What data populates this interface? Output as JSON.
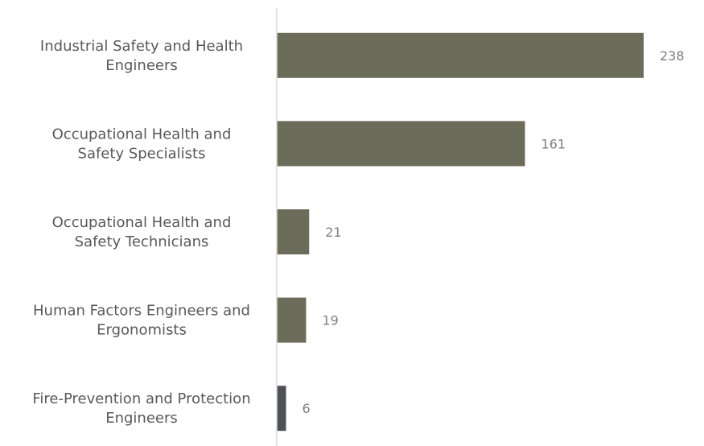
{
  "chart_data": {
    "type": "bar",
    "orientation": "horizontal",
    "categories": [
      "Industrial Safety and Health Engineers",
      "Occupational Health and Safety Specialists",
      "Occupational Health and Safety Technicians",
      "Human Factors Engineers and Ergonomists",
      "Fire-Prevention and Protection Engineers"
    ],
    "category_lines": [
      [
        "Industrial Safety and Health",
        "Engineers"
      ],
      [
        "Occupational Health and",
        "Safety Specialists"
      ],
      [
        "Occupational Health and",
        "Safety Technicians"
      ],
      [
        "Human Factors Engineers and",
        "Ergonomists"
      ],
      [
        "Fire-Prevention and Protection",
        "Engineers"
      ]
    ],
    "values": [
      238,
      161,
      21,
      19,
      6
    ],
    "data_labels": [
      "238",
      "161",
      "21",
      "19",
      "6"
    ],
    "bar_colors": [
      "#6b6c5a",
      "#6b6c5a",
      "#6b6c5a",
      "#6b6c5a",
      "#4f5158"
    ],
    "title": "",
    "xlabel": "",
    "ylabel": "",
    "xlim": [
      0,
      238
    ],
    "grid": false,
    "legend": "none"
  }
}
